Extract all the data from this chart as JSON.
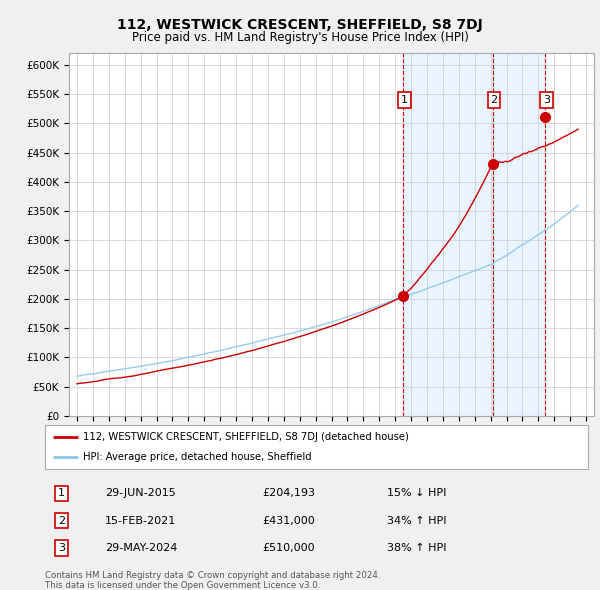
{
  "title": "112, WESTWICK CRESCENT, SHEFFIELD, S8 7DJ",
  "subtitle": "Price paid vs. HM Land Registry's House Price Index (HPI)",
  "legend_line1": "112, WESTWICK CRESCENT, SHEFFIELD, S8 7DJ (detached house)",
  "legend_line2": "HPI: Average price, detached house, Sheffield",
  "footer1": "Contains HM Land Registry data © Crown copyright and database right 2024.",
  "footer2": "This data is licensed under the Open Government Licence v3.0.",
  "transactions": [
    {
      "label": "1",
      "date": "29-JUN-2015",
      "price": 204193,
      "pct": "15%",
      "dir": "↓"
    },
    {
      "label": "2",
      "date": "15-FEB-2021",
      "price": 431000,
      "pct": "34%",
      "dir": "↑"
    },
    {
      "label": "3",
      "date": "29-MAY-2024",
      "price": 510000,
      "pct": "38%",
      "dir": "↑"
    }
  ],
  "transaction_years": [
    2015.5,
    2021.12,
    2024.41
  ],
  "transaction_prices": [
    204193,
    431000,
    510000
  ],
  "hpi_color": "#8dc6e8",
  "price_color": "#cc0000",
  "background_color": "#f0f0f0",
  "plot_bg": "#ffffff",
  "grid_color": "#cccccc",
  "shade_color": "#ddeeff",
  "ylim": [
    0,
    620000
  ],
  "yticks": [
    0,
    50000,
    100000,
    150000,
    200000,
    250000,
    300000,
    350000,
    400000,
    450000,
    500000,
    550000,
    600000
  ],
  "xmin": 1994.5,
  "xmax": 2027.5,
  "shade_start": 2015.5,
  "shade_mid": 2021.12,
  "shade_end": 2024.41
}
